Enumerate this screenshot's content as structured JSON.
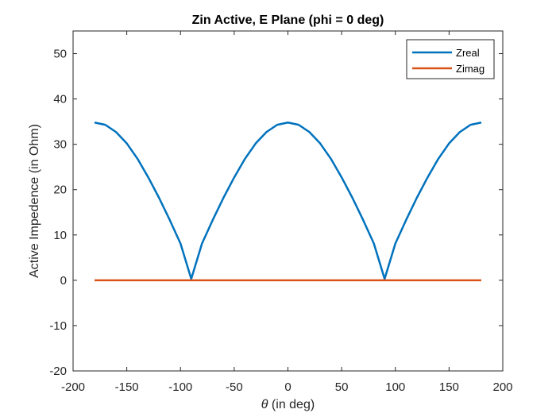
{
  "chart_data": {
    "type": "line",
    "title": "Zin Active, E Plane (phi = 0 deg)",
    "xlabel_symbol": "θ",
    "xlabel_rest": " (in deg)",
    "ylabel": "Active Impedence (in Ohm)",
    "xlim": [
      -200,
      200
    ],
    "ylim": [
      -20,
      55
    ],
    "xticks": [
      -200,
      -150,
      -100,
      -50,
      0,
      50,
      100,
      150,
      200
    ],
    "yticks": [
      -20,
      -10,
      0,
      10,
      20,
      30,
      40,
      50
    ],
    "grid": false,
    "legend_position": "top-right",
    "series": [
      {
        "name": "Zreal",
        "color": "#0072BD",
        "x": [
          -180,
          -170,
          -160,
          -150,
          -140,
          -130,
          -120,
          -110,
          -100,
          -90,
          -80,
          -70,
          -60,
          -50,
          -40,
          -30,
          -20,
          -10,
          0,
          10,
          20,
          30,
          40,
          50,
          60,
          70,
          80,
          90,
          100,
          110,
          120,
          130,
          140,
          150,
          160,
          170,
          180
        ],
        "y": [
          34.8,
          34.3,
          32.7,
          30.2,
          26.8,
          22.7,
          18.2,
          13.3,
          8.1,
          0.3,
          8.1,
          13.3,
          18.2,
          22.7,
          26.8,
          30.2,
          32.7,
          34.3,
          34.8,
          34.3,
          32.7,
          30.2,
          26.8,
          22.7,
          18.2,
          13.3,
          8.1,
          0.3,
          8.1,
          13.3,
          18.2,
          22.7,
          26.8,
          30.2,
          32.7,
          34.3,
          34.8
        ]
      },
      {
        "name": "Zimag",
        "color": "#D95319",
        "x": [
          -180,
          180
        ],
        "y": [
          0,
          0
        ]
      }
    ]
  }
}
